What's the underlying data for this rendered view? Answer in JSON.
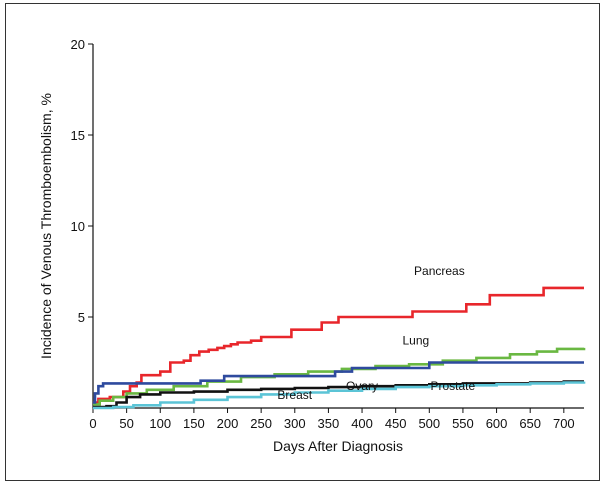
{
  "chart_data": {
    "type": "line",
    "line_style": "step",
    "xlabel": "Days After Diagnosis",
    "ylabel": "Incidence of Venous Thromboembolism, %",
    "xlim": [
      0,
      730
    ],
    "ylim": [
      0,
      20
    ],
    "x_ticks": [
      0,
      50,
      100,
      150,
      200,
      250,
      300,
      350,
      400,
      450,
      500,
      550,
      600,
      650,
      700
    ],
    "y_ticks": [
      5,
      10,
      15,
      20
    ],
    "grid": false,
    "legend": "none",
    "series": [
      {
        "name": "Pancreas",
        "color": "#e8262b",
        "points": [
          [
            0,
            0.3
          ],
          [
            8,
            0.5
          ],
          [
            25,
            0.6
          ],
          [
            45,
            0.9
          ],
          [
            55,
            1.2
          ],
          [
            65,
            1.4
          ],
          [
            72,
            1.8
          ],
          [
            100,
            2.0
          ],
          [
            115,
            2.5
          ],
          [
            135,
            2.6
          ],
          [
            145,
            2.9
          ],
          [
            158,
            3.1
          ],
          [
            172,
            3.2
          ],
          [
            185,
            3.3
          ],
          [
            195,
            3.4
          ],
          [
            205,
            3.5
          ],
          [
            215,
            3.6
          ],
          [
            235,
            3.7
          ],
          [
            250,
            3.9
          ],
          [
            295,
            4.3
          ],
          [
            340,
            4.7
          ],
          [
            365,
            5.0
          ],
          [
            475,
            5.3
          ],
          [
            520,
            5.3
          ],
          [
            555,
            5.7
          ],
          [
            590,
            6.2
          ],
          [
            670,
            6.6
          ],
          [
            730,
            6.6
          ]
        ]
      },
      {
        "name": "Lung",
        "color": "#6ab842",
        "points": [
          [
            0,
            0.2
          ],
          [
            10,
            0.4
          ],
          [
            30,
            0.6
          ],
          [
            50,
            0.8
          ],
          [
            80,
            1.0
          ],
          [
            120,
            1.2
          ],
          [
            170,
            1.45
          ],
          [
            220,
            1.7
          ],
          [
            270,
            1.85
          ],
          [
            320,
            2.0
          ],
          [
            370,
            2.15
          ],
          [
            420,
            2.3
          ],
          [
            470,
            2.4
          ],
          [
            520,
            2.6
          ],
          [
            570,
            2.75
          ],
          [
            620,
            2.95
          ],
          [
            660,
            3.1
          ],
          [
            690,
            3.25
          ],
          [
            730,
            3.3
          ]
        ]
      },
      {
        "name": "Ovary",
        "color": "#2e4a9e",
        "points": [
          [
            0,
            0.3
          ],
          [
            3,
            0.8
          ],
          [
            8,
            1.2
          ],
          [
            15,
            1.35
          ],
          [
            160,
            1.5
          ],
          [
            195,
            1.75
          ],
          [
            360,
            2.0
          ],
          [
            385,
            2.2
          ],
          [
            500,
            2.5
          ],
          [
            730,
            2.5
          ]
        ]
      },
      {
        "name": "Prostate",
        "color": "#111111",
        "points": [
          [
            0,
            0.05
          ],
          [
            20,
            0.1
          ],
          [
            35,
            0.3
          ],
          [
            50,
            0.6
          ],
          [
            70,
            0.75
          ],
          [
            100,
            0.85
          ],
          [
            150,
            0.9
          ],
          [
            200,
            1.0
          ],
          [
            250,
            1.05
          ],
          [
            300,
            1.1
          ],
          [
            350,
            1.15
          ],
          [
            400,
            1.2
          ],
          [
            450,
            1.25
          ],
          [
            500,
            1.3
          ],
          [
            550,
            1.35
          ],
          [
            600,
            1.35
          ],
          [
            650,
            1.4
          ],
          [
            700,
            1.45
          ],
          [
            730,
            1.45
          ]
        ]
      },
      {
        "name": "Breast",
        "color": "#5bc4d6",
        "points": [
          [
            0,
            0.0
          ],
          [
            30,
            0.05
          ],
          [
            60,
            0.15
          ],
          [
            100,
            0.3
          ],
          [
            150,
            0.45
          ],
          [
            200,
            0.6
          ],
          [
            250,
            0.75
          ],
          [
            300,
            0.85
          ],
          [
            350,
            0.95
          ],
          [
            400,
            1.05
          ],
          [
            450,
            1.15
          ],
          [
            500,
            1.2
          ],
          [
            550,
            1.25
          ],
          [
            600,
            1.3
          ],
          [
            650,
            1.35
          ],
          [
            700,
            1.4
          ],
          [
            730,
            1.45
          ]
        ]
      }
    ],
    "annotations": [
      {
        "text": "Pancreas",
        "x": 515,
        "y": 7.3
      },
      {
        "text": "Lung",
        "x": 480,
        "y": 3.5
      },
      {
        "text": "Ovary",
        "x": 400,
        "y": 1.0
      },
      {
        "text": "Prostate",
        "x": 535,
        "y": 1.0
      },
      {
        "text": "Breast",
        "x": 300,
        "y": 0.5
      }
    ]
  }
}
